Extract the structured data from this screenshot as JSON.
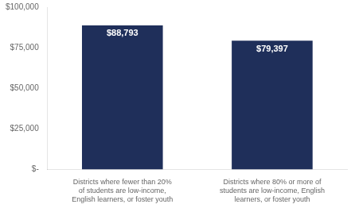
{
  "chart_data": {
    "type": "bar",
    "categories": [
      "Districts where fewer than 20%\nof students are low-income,\nEnglish learners, or foster youth",
      "Districts where 80% or more of\nstudents are low-income, English\nlearners, or foster youth"
    ],
    "values": [
      88793,
      79397
    ],
    "value_labels": [
      "$88,793",
      "$79,397"
    ],
    "data_labels": true,
    "color": "#1F2F5A",
    "ylim": [
      0,
      100000
    ],
    "yticks": [
      {
        "value": 0,
        "label": "$-"
      },
      {
        "value": 25000,
        "label": "$25,000"
      },
      {
        "value": 50000,
        "label": "$50,000"
      },
      {
        "value": 75000,
        "label": "$75,000"
      },
      {
        "value": 100000,
        "label": "$100,000"
      }
    ],
    "grid": false
  }
}
